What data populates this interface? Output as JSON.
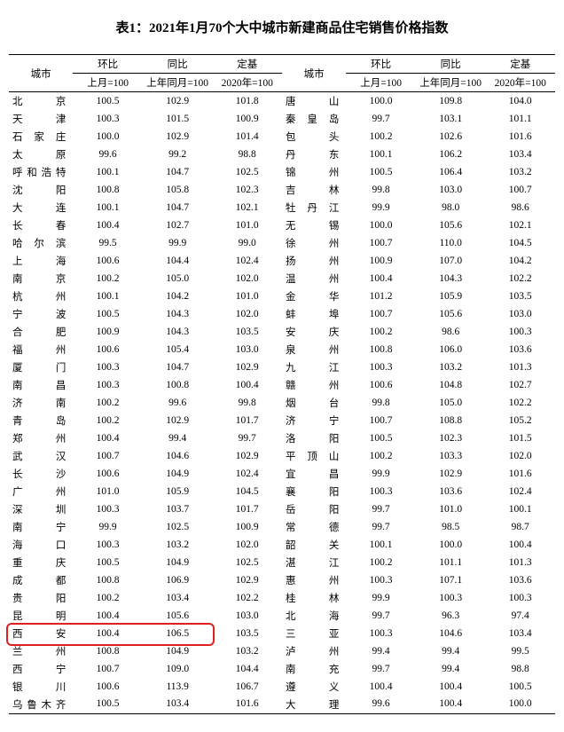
{
  "title": "表1：2021年1月70个大中城市新建商品住宅销售价格指数",
  "headers": {
    "city": "城市",
    "mom": "环比",
    "yoy": "同比",
    "base": "定基",
    "mom_base": "上月=100",
    "yoy_base": "上年同月=100",
    "base_base": "2020年=100"
  },
  "left": [
    {
      "city": "北　　京",
      "mom": "100.5",
      "yoy": "102.9",
      "base": "101.8"
    },
    {
      "city": "天　　津",
      "mom": "100.3",
      "yoy": "101.5",
      "base": "100.9"
    },
    {
      "city": "石 家 庄",
      "mom": "100.0",
      "yoy": "102.9",
      "base": "101.4"
    },
    {
      "city": "太　　原",
      "mom": "99.6",
      "yoy": "99.2",
      "base": "98.8"
    },
    {
      "city": "呼和浩特",
      "mom": "100.1",
      "yoy": "104.7",
      "base": "102.5"
    },
    {
      "city": "沈　　阳",
      "mom": "100.8",
      "yoy": "105.8",
      "base": "102.3"
    },
    {
      "city": "大　　连",
      "mom": "100.1",
      "yoy": "104.7",
      "base": "102.1"
    },
    {
      "city": "长　　春",
      "mom": "100.4",
      "yoy": "102.7",
      "base": "101.0"
    },
    {
      "city": "哈 尔 滨",
      "mom": "99.5",
      "yoy": "99.9",
      "base": "99.0"
    },
    {
      "city": "上　　海",
      "mom": "100.6",
      "yoy": "104.4",
      "base": "102.4"
    },
    {
      "city": "南　　京",
      "mom": "100.2",
      "yoy": "105.0",
      "base": "102.0"
    },
    {
      "city": "杭　　州",
      "mom": "100.1",
      "yoy": "104.2",
      "base": "101.0"
    },
    {
      "city": "宁　　波",
      "mom": "100.5",
      "yoy": "104.3",
      "base": "102.0"
    },
    {
      "city": "合　　肥",
      "mom": "100.9",
      "yoy": "104.3",
      "base": "103.5"
    },
    {
      "city": "福　　州",
      "mom": "100.6",
      "yoy": "105.4",
      "base": "103.0"
    },
    {
      "city": "厦　　门",
      "mom": "100.3",
      "yoy": "104.7",
      "base": "102.9"
    },
    {
      "city": "南　　昌",
      "mom": "100.3",
      "yoy": "100.8",
      "base": "100.4"
    },
    {
      "city": "济　　南",
      "mom": "100.2",
      "yoy": "99.6",
      "base": "99.8"
    },
    {
      "city": "青　　岛",
      "mom": "100.2",
      "yoy": "102.9",
      "base": "101.7"
    },
    {
      "city": "郑　　州",
      "mom": "100.4",
      "yoy": "99.4",
      "base": "99.7"
    },
    {
      "city": "武　　汉",
      "mom": "100.7",
      "yoy": "104.6",
      "base": "102.9"
    },
    {
      "city": "长　　沙",
      "mom": "100.6",
      "yoy": "104.9",
      "base": "102.4"
    },
    {
      "city": "广　　州",
      "mom": "101.0",
      "yoy": "105.9",
      "base": "104.5"
    },
    {
      "city": "深　　圳",
      "mom": "100.3",
      "yoy": "103.7",
      "base": "101.7"
    },
    {
      "city": "南　　宁",
      "mom": "99.9",
      "yoy": "102.5",
      "base": "100.9"
    },
    {
      "city": "海　　口",
      "mom": "100.3",
      "yoy": "103.2",
      "base": "102.0"
    },
    {
      "city": "重　　庆",
      "mom": "100.5",
      "yoy": "104.9",
      "base": "102.5"
    },
    {
      "city": "成　　都",
      "mom": "100.8",
      "yoy": "106.9",
      "base": "102.9"
    },
    {
      "city": "贵　　阳",
      "mom": "100.2",
      "yoy": "103.4",
      "base": "102.2"
    },
    {
      "city": "昆　　明",
      "mom": "100.4",
      "yoy": "105.6",
      "base": "103.0"
    },
    {
      "city": "西　　安",
      "mom": "100.4",
      "yoy": "106.5",
      "base": "103.5"
    },
    {
      "city": "兰　　州",
      "mom": "100.8",
      "yoy": "104.9",
      "base": "103.2"
    },
    {
      "city": "西　　宁",
      "mom": "100.7",
      "yoy": "109.0",
      "base": "104.4"
    },
    {
      "city": "银　　川",
      "mom": "100.6",
      "yoy": "113.9",
      "base": "106.7"
    },
    {
      "city": "乌鲁木齐",
      "mom": "100.5",
      "yoy": "103.4",
      "base": "101.6"
    }
  ],
  "right": [
    {
      "city": "唐　　山",
      "mom": "100.0",
      "yoy": "109.8",
      "base": "104.0"
    },
    {
      "city": "秦 皇 岛",
      "mom": "99.7",
      "yoy": "103.1",
      "base": "101.1"
    },
    {
      "city": "包　　头",
      "mom": "100.2",
      "yoy": "102.6",
      "base": "101.6"
    },
    {
      "city": "丹　　东",
      "mom": "100.1",
      "yoy": "106.2",
      "base": "103.4"
    },
    {
      "city": "锦　　州",
      "mom": "100.5",
      "yoy": "106.4",
      "base": "103.2"
    },
    {
      "city": "吉　　林",
      "mom": "99.8",
      "yoy": "103.0",
      "base": "100.7"
    },
    {
      "city": "牡 丹 江",
      "mom": "99.9",
      "yoy": "98.0",
      "base": "98.6"
    },
    {
      "city": "无　　锡",
      "mom": "100.0",
      "yoy": "105.6",
      "base": "102.1"
    },
    {
      "city": "徐　　州",
      "mom": "100.7",
      "yoy": "110.0",
      "base": "104.5"
    },
    {
      "city": "扬　　州",
      "mom": "100.9",
      "yoy": "107.0",
      "base": "104.2"
    },
    {
      "city": "温　　州",
      "mom": "100.4",
      "yoy": "104.3",
      "base": "102.2"
    },
    {
      "city": "金　　华",
      "mom": "101.2",
      "yoy": "105.9",
      "base": "103.5"
    },
    {
      "city": "蚌　　埠",
      "mom": "100.7",
      "yoy": "105.6",
      "base": "103.0"
    },
    {
      "city": "安　　庆",
      "mom": "100.2",
      "yoy": "98.6",
      "base": "100.3"
    },
    {
      "city": "泉　　州",
      "mom": "100.8",
      "yoy": "106.0",
      "base": "103.6"
    },
    {
      "city": "九　　江",
      "mom": "100.3",
      "yoy": "103.2",
      "base": "101.3"
    },
    {
      "city": "赣　　州",
      "mom": "100.6",
      "yoy": "104.8",
      "base": "102.7"
    },
    {
      "city": "烟　　台",
      "mom": "99.8",
      "yoy": "105.0",
      "base": "102.2"
    },
    {
      "city": "济　　宁",
      "mom": "100.7",
      "yoy": "108.8",
      "base": "105.2"
    },
    {
      "city": "洛　　阳",
      "mom": "100.5",
      "yoy": "102.3",
      "base": "101.5"
    },
    {
      "city": "平 顶 山",
      "mom": "100.2",
      "yoy": "103.3",
      "base": "102.0"
    },
    {
      "city": "宜　　昌",
      "mom": "99.9",
      "yoy": "102.9",
      "base": "101.6"
    },
    {
      "city": "襄　　阳",
      "mom": "100.3",
      "yoy": "103.6",
      "base": "102.4"
    },
    {
      "city": "岳　　阳",
      "mom": "99.7",
      "yoy": "101.0",
      "base": "100.1"
    },
    {
      "city": "常　　德",
      "mom": "99.7",
      "yoy": "98.5",
      "base": "98.7"
    },
    {
      "city": "韶　　关",
      "mom": "100.1",
      "yoy": "100.0",
      "base": "100.4"
    },
    {
      "city": "湛　　江",
      "mom": "100.2",
      "yoy": "101.1",
      "base": "101.3"
    },
    {
      "city": "惠　　州",
      "mom": "100.3",
      "yoy": "107.1",
      "base": "103.6"
    },
    {
      "city": "桂　　林",
      "mom": "99.9",
      "yoy": "100.3",
      "base": "100.3"
    },
    {
      "city": "北　　海",
      "mom": "99.7",
      "yoy": "96.3",
      "base": "97.4"
    },
    {
      "city": "三　　亚",
      "mom": "100.3",
      "yoy": "104.6",
      "base": "103.4"
    },
    {
      "city": "泸　　州",
      "mom": "99.4",
      "yoy": "99.4",
      "base": "99.5"
    },
    {
      "city": "南　　充",
      "mom": "99.7",
      "yoy": "99.4",
      "base": "98.8"
    },
    {
      "city": "遵　　义",
      "mom": "100.4",
      "yoy": "100.4",
      "base": "100.5"
    },
    {
      "city": "大　　理",
      "mom": "99.6",
      "yoy": "100.4",
      "base": "100.0"
    }
  ],
  "highlight": {
    "row_index_left": 30,
    "color": "#e02020"
  }
}
